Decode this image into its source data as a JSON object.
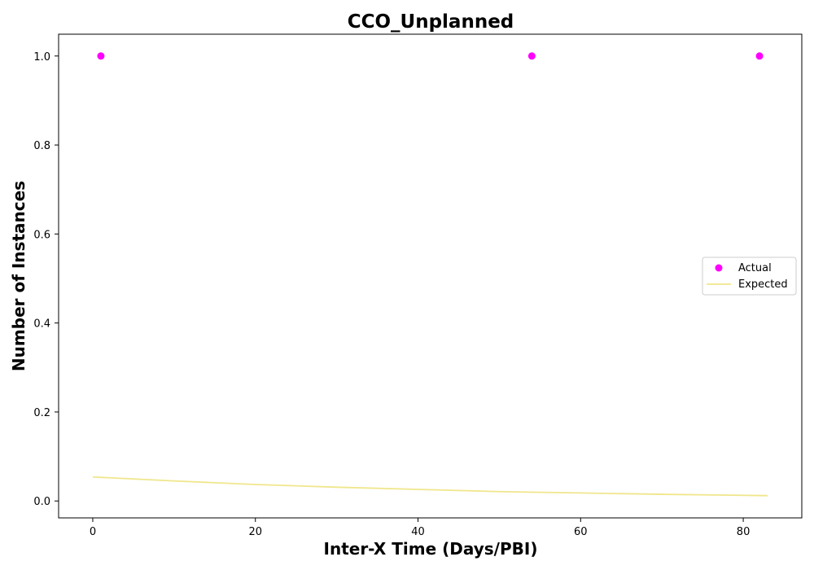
{
  "chart_data": {
    "type": "scatter",
    "title": "CCO_Unplanned",
    "xlabel": "Inter-X Time (Days/PBI)",
    "ylabel": "Number of Instances",
    "xlim": [
      -4.2,
      87.2
    ],
    "ylim": [
      -0.038,
      1.049
    ],
    "xticks": [
      0,
      20,
      40,
      60,
      80
    ],
    "xtick_labels": [
      "0",
      "20",
      "40",
      "60",
      "80"
    ],
    "yticks": [
      0.0,
      0.2,
      0.4,
      0.6,
      0.8,
      1.0
    ],
    "ytick_labels": [
      "0.0",
      "0.2",
      "0.4",
      "0.6",
      "0.8",
      "1.0"
    ],
    "grid": false,
    "legend_position": "center-right",
    "series": [
      {
        "name": "Actual",
        "kind": "scatter",
        "color": "#ff00ff",
        "x": [
          1,
          54,
          82
        ],
        "y": [
          1.0,
          1.0,
          1.0
        ]
      },
      {
        "name": "Expected",
        "kind": "line",
        "color": "#f0e68c",
        "x": [
          0,
          10,
          20,
          30,
          40,
          50,
          60,
          70,
          83
        ],
        "y": [
          0.054,
          0.045,
          0.037,
          0.031,
          0.026,
          0.021,
          0.018,
          0.015,
          0.012
        ]
      }
    ]
  }
}
